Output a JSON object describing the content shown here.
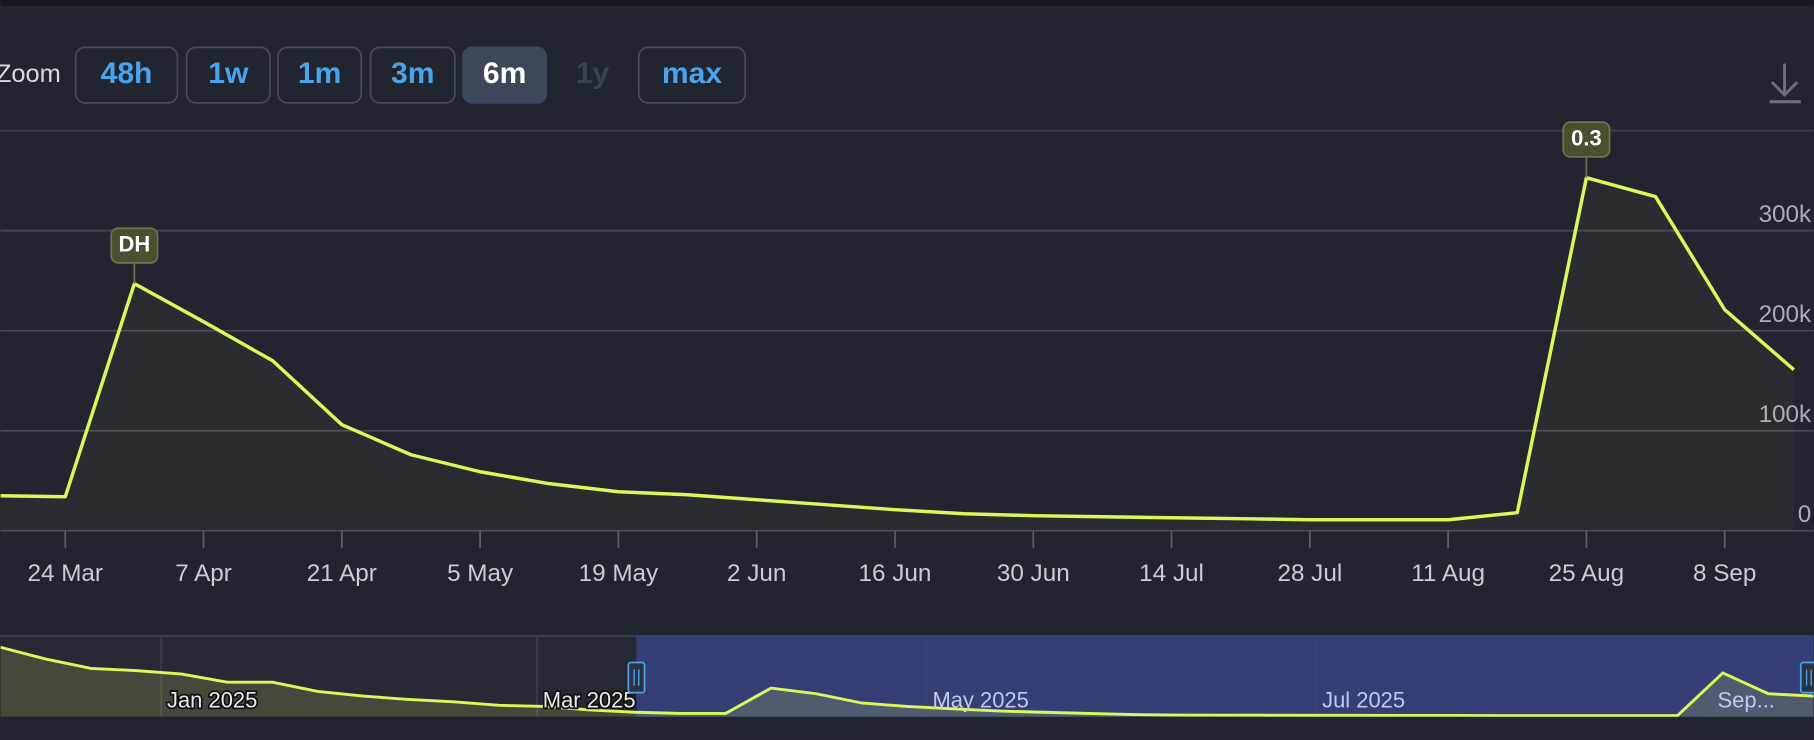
{
  "range_selector": {
    "label": "Zoom",
    "buttons": [
      "48h",
      "1w",
      "1m",
      "3m",
      "6m",
      "1y",
      "max"
    ],
    "selected": 4,
    "disabled": [
      5
    ]
  },
  "chart_data": {
    "type": "line",
    "color": "#dcf75a",
    "categories": [
      null,
      "24 Mar",
      null,
      "7 Apr",
      null,
      "21 Apr",
      null,
      "5 May",
      null,
      "19 May",
      null,
      "2 Jun",
      null,
      "16 Jun",
      null,
      "30 Jun",
      null,
      "14 Jul",
      null,
      "28 Jul",
      null,
      "11 Aug",
      null,
      "25 Aug",
      null,
      "8 Sep",
      null
    ],
    "values": [
      35000,
      34000,
      247000,
      209000,
      170000,
      106000,
      76000,
      59000,
      47000,
      39000,
      36000,
      31000,
      26000,
      21000,
      17000,
      15000,
      14000,
      13000,
      12000,
      11000,
      11000,
      11000,
      18000,
      353000,
      334000,
      221000,
      161000
    ],
    "ylim": [
      0,
      400000
    ],
    "yticks": [
      0,
      {
        "value": 100000,
        "label": "100k"
      },
      {
        "value": 200000,
        "label": "200k"
      },
      {
        "value": 300000,
        "label": "300k"
      }
    ],
    "grid": true,
    "annotations": [
      {
        "text": "DH",
        "x": 2
      },
      {
        "text": "0.3",
        "x": 23
      }
    ]
  },
  "navigator": {
    "values": [
      560000,
      465000,
      390000,
      372000,
      344000,
      279000,
      279000,
      205000,
      167000,
      140000,
      121000,
      93000,
      84000,
      56000,
      37000,
      28000,
      28000,
      232000,
      186000,
      112000,
      84000,
      65000,
      47000,
      37000,
      28000,
      19000,
      15000,
      14000,
      13000,
      12000,
      12000,
      11000,
      11000,
      10000,
      10000,
      10000,
      10000,
      10000,
      353000,
      186000,
      167000
    ],
    "labels": [
      "Jan 2025",
      "Mar 2025",
      "May 2025",
      "Jul 2025",
      "Sep..."
    ]
  }
}
